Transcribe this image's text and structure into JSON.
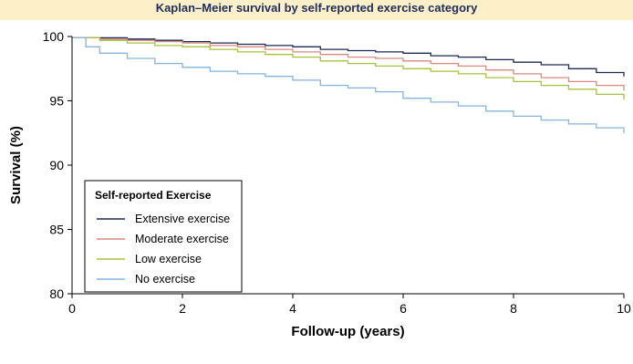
{
  "banner": {
    "title": "Kaplan–Meier survival by self-reported exercise category"
  },
  "chart_data": {
    "type": "line",
    "step": true,
    "xlabel": "Follow-up (years)",
    "ylabel": "Survival (%)",
    "xlim": [
      0,
      10
    ],
    "ylim": [
      80,
      100
    ],
    "xticks": [
      "0",
      "2",
      "4",
      "6",
      "8",
      "10"
    ],
    "yticks": [
      "80",
      "85",
      "90",
      "95",
      "100"
    ],
    "grid": false,
    "legend": {
      "title": "Self-reported Exercise",
      "position": "bottom-left"
    },
    "series": [
      {
        "name": "Extensive exercise",
        "color": "#1c2a56",
        "x": [
          0,
          0.5,
          1,
          1.5,
          2,
          2.5,
          3,
          3.5,
          4,
          4.5,
          5,
          5.5,
          6,
          6.5,
          7,
          7.5,
          8,
          8.5,
          9,
          9.5,
          10
        ],
        "y": [
          99.9,
          99.9,
          99.8,
          99.7,
          99.6,
          99.5,
          99.4,
          99.3,
          99.2,
          99.0,
          98.9,
          98.8,
          98.7,
          98.5,
          98.4,
          98.2,
          98.0,
          97.8,
          97.5,
          97.2,
          96.9
        ]
      },
      {
        "name": "Moderate exercise",
        "color": "#d98a7e",
        "x": [
          0,
          0.5,
          1,
          1.5,
          2,
          2.5,
          3,
          3.5,
          4,
          4.5,
          5,
          5.5,
          6,
          6.5,
          7,
          7.5,
          8,
          8.5,
          9,
          9.5,
          10
        ],
        "y": [
          99.9,
          99.8,
          99.7,
          99.6,
          99.5,
          99.3,
          99.2,
          99.0,
          98.8,
          98.6,
          98.4,
          98.3,
          98.1,
          97.9,
          97.7,
          97.4,
          97.1,
          96.8,
          96.5,
          96.2,
          95.8
        ]
      },
      {
        "name": "Low exercise",
        "color": "#a7c23f",
        "x": [
          0,
          0.5,
          1,
          1.5,
          2,
          2.5,
          3,
          3.5,
          4,
          4.5,
          5,
          5.5,
          6,
          6.5,
          7,
          7.5,
          8,
          8.5,
          9,
          9.5,
          10
        ],
        "y": [
          99.9,
          99.7,
          99.5,
          99.3,
          99.2,
          99.0,
          98.8,
          98.6,
          98.4,
          98.1,
          97.9,
          97.7,
          97.5,
          97.3,
          97.1,
          96.8,
          96.5,
          96.2,
          95.9,
          95.5,
          95.1
        ]
      },
      {
        "name": "No exercise",
        "color": "#86b4de",
        "x": [
          0,
          0.25,
          0.5,
          1,
          1.5,
          2,
          2.5,
          3,
          3.5,
          4,
          4.5,
          5,
          5.5,
          6,
          6.5,
          7,
          7.5,
          8,
          8.5,
          9,
          9.5,
          10
        ],
        "y": [
          99.9,
          99.2,
          98.7,
          98.3,
          97.9,
          97.6,
          97.3,
          97.1,
          96.9,
          96.6,
          96.2,
          96.0,
          95.7,
          95.2,
          94.9,
          94.6,
          94.2,
          93.8,
          93.5,
          93.2,
          92.9,
          92.5
        ]
      }
    ]
  }
}
